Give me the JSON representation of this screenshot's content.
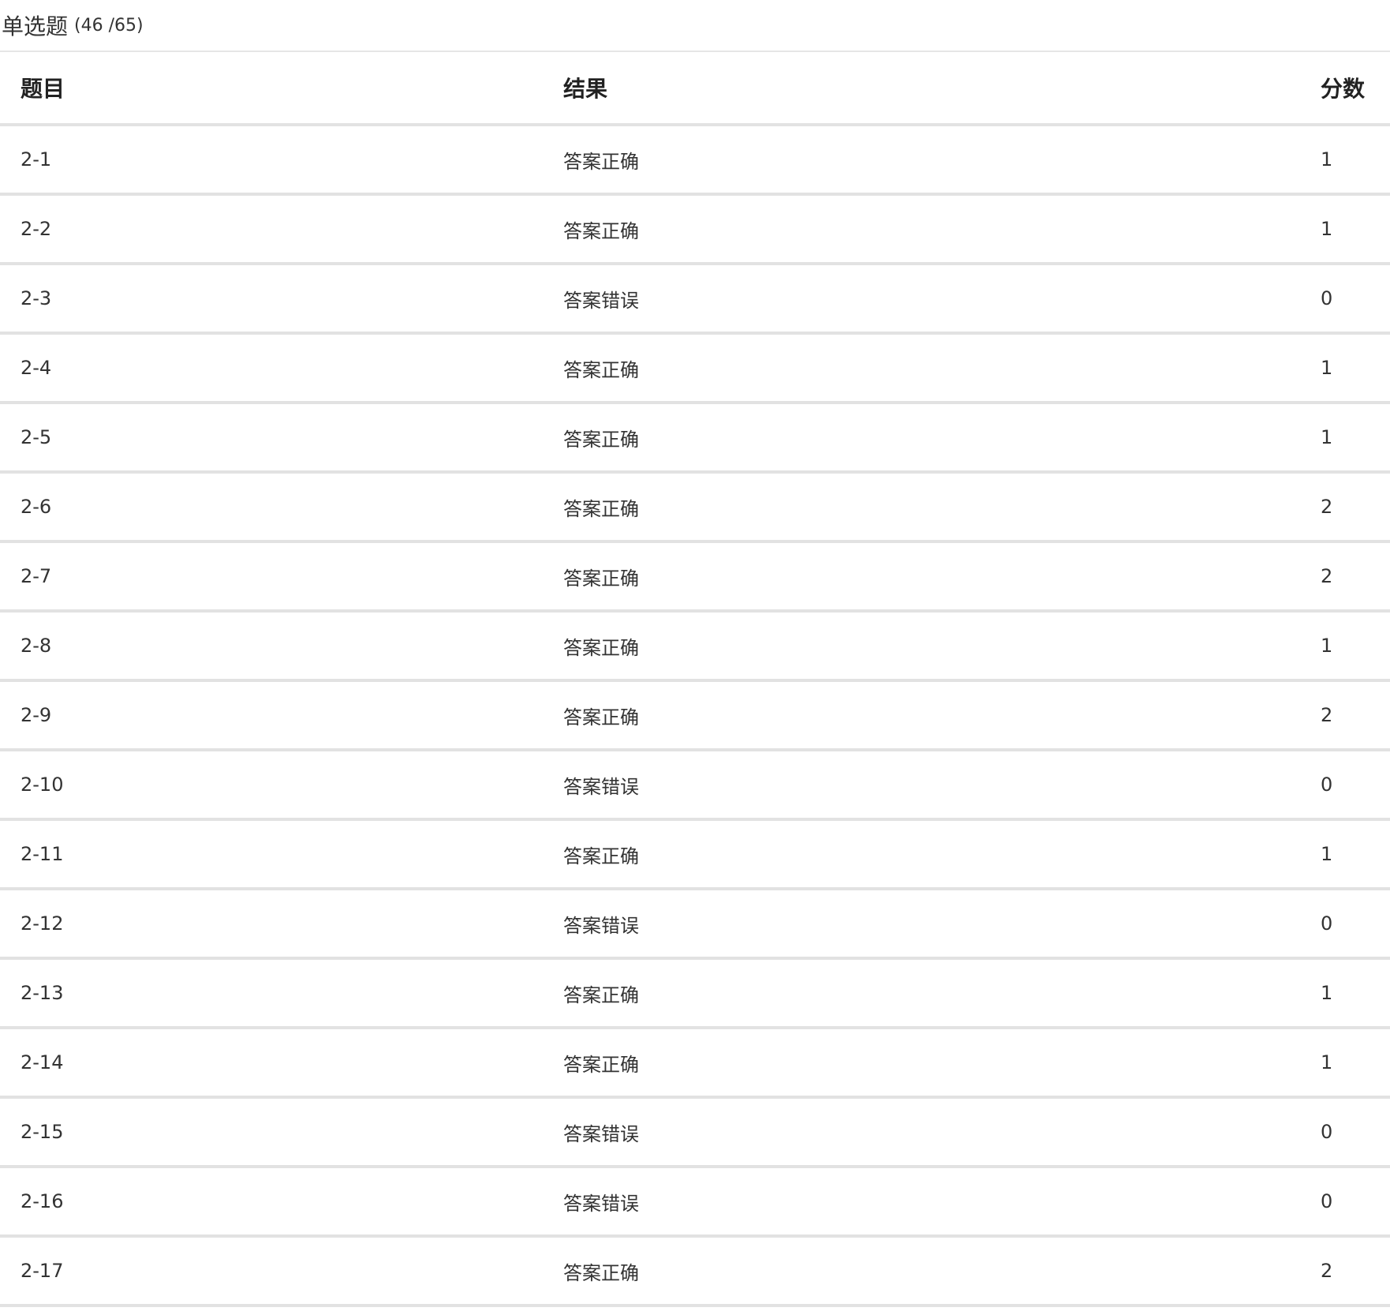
{
  "section": {
    "title": "单选题",
    "count": "(46 /65)"
  },
  "table": {
    "headers": {
      "question": "题目",
      "result": "结果",
      "score": "分数"
    },
    "rows": [
      {
        "question": "2-1",
        "result": "答案正确",
        "status": "correct",
        "score": "1"
      },
      {
        "question": "2-2",
        "result": "答案正确",
        "status": "correct",
        "score": "1"
      },
      {
        "question": "2-3",
        "result": "答案错误",
        "status": "wrong",
        "score": "0"
      },
      {
        "question": "2-4",
        "result": "答案正确",
        "status": "correct",
        "score": "1"
      },
      {
        "question": "2-5",
        "result": "答案正确",
        "status": "correct",
        "score": "1"
      },
      {
        "question": "2-6",
        "result": "答案正确",
        "status": "correct",
        "score": "2"
      },
      {
        "question": "2-7",
        "result": "答案正确",
        "status": "correct",
        "score": "2"
      },
      {
        "question": "2-8",
        "result": "答案正确",
        "status": "correct",
        "score": "1"
      },
      {
        "question": "2-9",
        "result": "答案正确",
        "status": "correct",
        "score": "2"
      },
      {
        "question": "2-10",
        "result": "答案错误",
        "status": "wrong",
        "score": "0"
      },
      {
        "question": "2-11",
        "result": "答案正确",
        "status": "correct",
        "score": "1"
      },
      {
        "question": "2-12",
        "result": "答案错误",
        "status": "wrong",
        "score": "0"
      },
      {
        "question": "2-13",
        "result": "答案正确",
        "status": "correct",
        "score": "1"
      },
      {
        "question": "2-14",
        "result": "答案正确",
        "status": "correct",
        "score": "1"
      },
      {
        "question": "2-15",
        "result": "答案错误",
        "status": "wrong",
        "score": "0"
      },
      {
        "question": "2-16",
        "result": "答案错误",
        "status": "wrong",
        "score": "0"
      },
      {
        "question": "2-17",
        "result": "答案正确",
        "status": "correct",
        "score": "2"
      }
    ]
  },
  "colors": {
    "correct": "#e04a3a",
    "wrong": "#4f9d4f",
    "divider": "#e2e2e2"
  }
}
